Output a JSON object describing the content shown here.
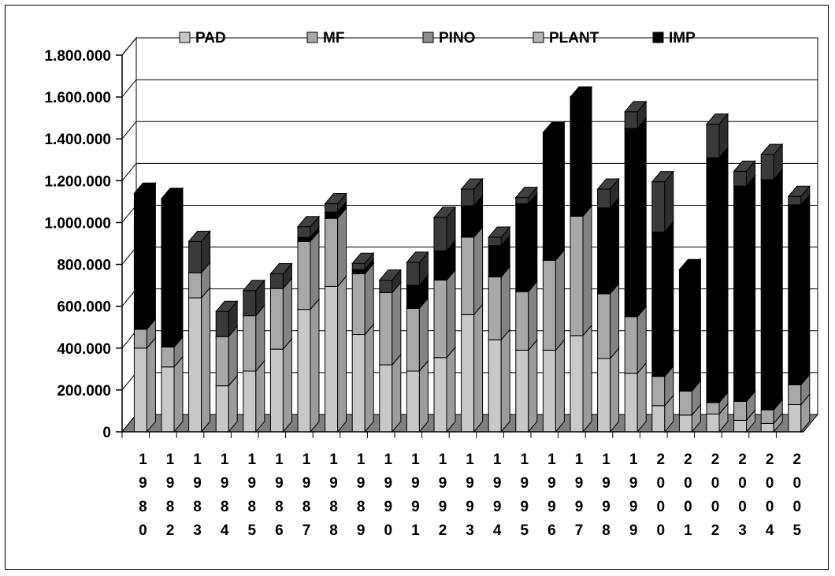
{
  "chart_data": {
    "type": "bar",
    "stacked": true,
    "three_d": true,
    "title": "",
    "xlabel": "",
    "ylabel": "",
    "ylim": [
      0,
      1800000
    ],
    "y_ticks": [
      {
        "value": 0,
        "label": "0"
      },
      {
        "value": 200000,
        "label": "200.000"
      },
      {
        "value": 400000,
        "label": "400.000"
      },
      {
        "value": 600000,
        "label": "600.000"
      },
      {
        "value": 800000,
        "label": "800.000"
      },
      {
        "value": 1000000,
        "label": "1.000.000"
      },
      {
        "value": 1200000,
        "label": "1.200.000"
      },
      {
        "value": 1400000,
        "label": "1.400.000"
      },
      {
        "value": 1600000,
        "label": "1.600.000"
      },
      {
        "value": 1800000,
        "label": "1.800.000"
      }
    ],
    "grid": true,
    "legend_position": "top",
    "categories": [
      "1980",
      "1982",
      "1983",
      "1984",
      "1985",
      "1986",
      "1987",
      "1988",
      "1989",
      "1990",
      "1991",
      "1992",
      "1993",
      "1994",
      "1995",
      "1996",
      "1997",
      "1998",
      "1999",
      "2000",
      "2001",
      "2002",
      "2003",
      "2004",
      "2005"
    ],
    "series": [
      {
        "name": "PAD",
        "color": "#c8c8c8",
        "values": [
          400000,
          310000,
          640000,
          220000,
          290000,
          395000,
          585000,
          695000,
          465000,
          320000,
          290000,
          355000,
          560000,
          440000,
          390000,
          390000,
          460000,
          350000,
          280000,
          125000,
          80000,
          85000,
          55000,
          40000,
          130000
        ]
      },
      {
        "name": "MF",
        "color": "#a8a8a8",
        "values": [
          90000,
          95000,
          120000,
          235000,
          265000,
          290000,
          325000,
          325000,
          290000,
          345000,
          300000,
          370000,
          370000,
          300000,
          280000,
          430000,
          570000,
          310000,
          270000,
          140000,
          115000,
          55000,
          90000,
          65000,
          95000
        ]
      },
      {
        "name": "PINO",
        "color": "#8c8c8c",
        "values": [
          0,
          0,
          0,
          0,
          0,
          0,
          0,
          0,
          0,
          0,
          0,
          0,
          0,
          0,
          0,
          0,
          0,
          0,
          0,
          0,
          0,
          0,
          0,
          0,
          0
        ]
      },
      {
        "name": "PLANT",
        "color": "#b4b4b4",
        "values": [
          0,
          0,
          0,
          0,
          0,
          0,
          0,
          0,
          0,
          0,
          0,
          0,
          0,
          0,
          0,
          0,
          0,
          0,
          0,
          0,
          0,
          0,
          0,
          0,
          0
        ]
      },
      {
        "name": "IMP",
        "color": "#000000",
        "values": [
          650000,
          710000,
          0,
          0,
          0,
          0,
          20000,
          30000,
          20000,
          0,
          110000,
          140000,
          150000,
          150000,
          420000,
          610000,
          570000,
          410000,
          900000,
          690000,
          580000,
          1170000,
          1030000,
          1100000,
          860000
        ]
      },
      {
        "name": "",
        "color": "#3a3a3a",
        "values": [
          0,
          0,
          150000,
          120000,
          120000,
          70000,
          50000,
          40000,
          30000,
          60000,
          110000,
          160000,
          80000,
          40000,
          30000,
          0,
          0,
          90000,
          80000,
          240000,
          0,
          160000,
          70000,
          120000,
          40000
        ]
      }
    ]
  }
}
